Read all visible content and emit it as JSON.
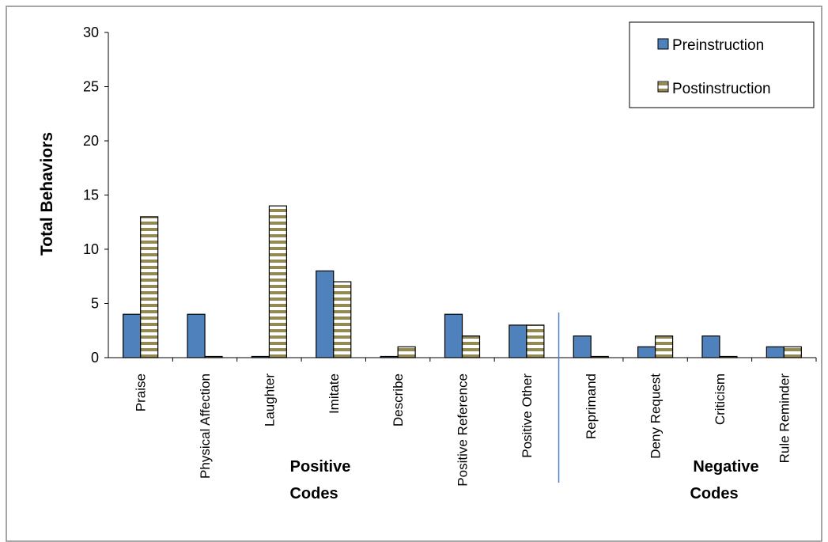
{
  "chart_data": {
    "type": "bar",
    "title": "",
    "xlabel": "",
    "ylabel": "Total Behaviors",
    "ylim": [
      0,
      30
    ],
    "yticks": [
      0,
      5,
      10,
      15,
      20,
      25,
      30
    ],
    "grid": false,
    "legend_position": "top-right",
    "categories": [
      "Praise",
      "Physical Affection",
      "Laughter",
      "Imitate",
      "Describe",
      "Positive Reference",
      "Positive Other",
      "Reprimand",
      "Deny Request",
      "Criticism",
      "Rule Reminder"
    ],
    "series": [
      {
        "name": "Preinstruction",
        "values": [
          4,
          4,
          0,
          8,
          0,
          4,
          3,
          2,
          1,
          2,
          1
        ],
        "color": "#4f81bd"
      },
      {
        "name": "Postinstruction",
        "values": [
          13,
          0,
          14,
          7,
          1,
          2,
          3,
          0,
          2,
          0,
          1
        ],
        "color": "#938953",
        "pattern": "horizontal-stripes"
      }
    ],
    "groups": [
      {
        "label_line1": "Positive",
        "label_line2": "Codes"
      },
      {
        "label_line1": "Negative",
        "label_line2": "Codes"
      }
    ],
    "divider_after_category": 6,
    "colors": {
      "divider": "#4f81bd",
      "frame": "#888888"
    }
  }
}
